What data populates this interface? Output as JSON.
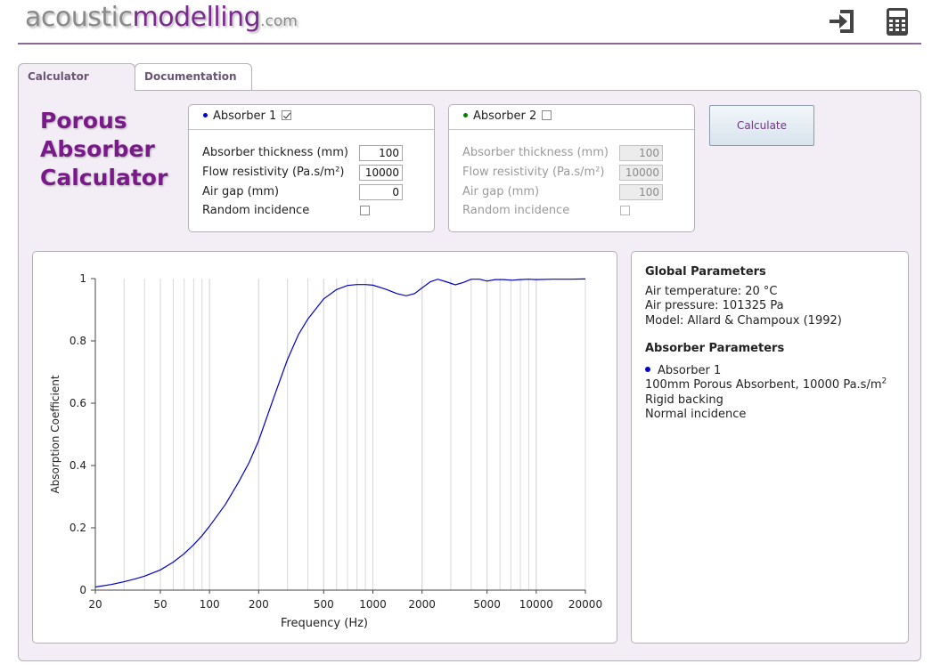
{
  "header": {
    "logo_part1": "acoustic",
    "logo_part2": "modelling",
    "logo_part3": ".com",
    "icons": [
      "sign-in-icon",
      "calculator-icon"
    ]
  },
  "tabs": [
    {
      "label": "Calculator",
      "active": true
    },
    {
      "label": "Documentation",
      "active": false
    }
  ],
  "title_lines": [
    "Porous",
    "Absorber",
    "Calculator"
  ],
  "absorber1": {
    "label": "Absorber 1",
    "enabled": true,
    "dot_color": "#0000cc",
    "fields": [
      {
        "label": "Absorber thickness (mm)",
        "value": "100"
      },
      {
        "label": "Flow resistivity (Pa.s/m²)",
        "value": "10000"
      },
      {
        "label": "Air gap (mm)",
        "value": "0"
      }
    ],
    "random_incidence_label": "Random incidence",
    "random_incidence": false
  },
  "absorber2": {
    "label": "Absorber 2",
    "enabled": false,
    "dot_color": "#008000",
    "fields": [
      {
        "label": "Absorber thickness (mm)",
        "value": "100"
      },
      {
        "label": "Flow resistivity (Pa.s/m²)",
        "value": "10000"
      },
      {
        "label": "Air gap (mm)",
        "value": "100"
      }
    ],
    "random_incidence_label": "Random incidence",
    "random_incidence": false
  },
  "calculate_label": "Calculate",
  "chart_data": {
    "type": "line",
    "xlabel": "Frequency (Hz)",
    "ylabel": "Absorption Coefficient",
    "xscale": "log",
    "xlim": [
      20,
      20000
    ],
    "ylim": [
      0,
      1
    ],
    "grid": true,
    "x_ticks": [
      20,
      50,
      100,
      200,
      500,
      1000,
      2000,
      5000,
      10000,
      20000
    ],
    "x_tick_labels": [
      "20",
      "50",
      "100",
      "200",
      "500",
      "1000",
      "2000",
      "5000",
      "10000",
      "20000"
    ],
    "y_ticks": [
      0,
      0.2,
      0.4,
      0.6,
      0.8,
      1
    ],
    "y_tick_labels": [
      "0",
      "0.2",
      "0.4",
      "0.6",
      "0.8",
      "1"
    ],
    "series": [
      {
        "color": "#0000cc",
        "x": [
          20,
          25,
          30,
          35,
          40,
          50,
          60,
          70,
          80,
          90,
          100,
          125,
          150,
          175,
          200,
          250,
          300,
          350,
          400,
          500,
          600,
          700,
          800,
          900,
          1000,
          1200,
          1400,
          1600,
          1800,
          2000,
          2250,
          2500,
          2800,
          3200,
          3600,
          4000,
          4500,
          5000,
          5600,
          6300,
          7100,
          8000,
          9000,
          10000,
          12500,
          16000,
          20000
        ],
        "y": [
          0.01,
          0.018,
          0.027,
          0.036,
          0.045,
          0.065,
          0.09,
          0.117,
          0.146,
          0.175,
          0.205,
          0.275,
          0.345,
          0.41,
          0.48,
          0.625,
          0.74,
          0.82,
          0.87,
          0.935,
          0.965,
          0.978,
          0.981,
          0.981,
          0.979,
          0.966,
          0.952,
          0.945,
          0.952,
          0.97,
          0.99,
          0.998,
          0.99,
          0.98,
          0.988,
          0.998,
          0.998,
          0.992,
          0.997,
          0.997,
          0.995,
          0.997,
          0.998,
          0.997,
          0.998,
          0.998,
          0.999
        ]
      }
    ]
  },
  "global_params": {
    "heading": "Global Parameters",
    "lines": [
      "Air temperature: 20 °C",
      "Air pressure: 101325 Pa",
      "Model: Allard & Champoux (1992)"
    ]
  },
  "absorber_params": {
    "heading": "Absorber Parameters",
    "item_label": "Absorber 1",
    "item_dot_color": "#0000cc",
    "desc_main": "100mm Porous Absorbent, 10000 Pa.s/m",
    "desc_sup": "2",
    "lines": [
      "Rigid backing",
      "Normal incidence"
    ]
  }
}
